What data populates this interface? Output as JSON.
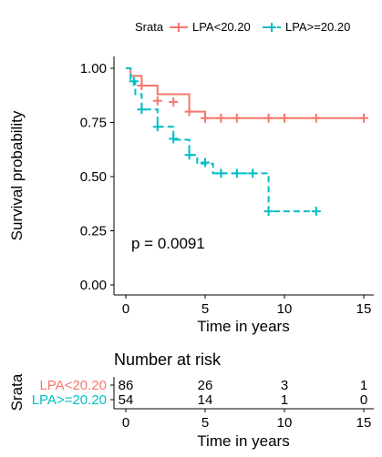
{
  "chart_data": [
    {
      "type": "line",
      "subtype": "kaplan-meier",
      "title": "",
      "xlabel": "Time in years",
      "ylabel": "Survival probability",
      "xlim": [
        0,
        15
      ],
      "ylim": [
        0,
        1
      ],
      "x_ticks": [
        0,
        5,
        10,
        15
      ],
      "y_ticks": [
        0,
        0.25,
        0.5,
        0.75,
        1.0
      ],
      "y_tick_labels": [
        "0.00",
        "0.25",
        "0.50",
        "0.75",
        "1.00"
      ],
      "grid": false,
      "legend": {
        "title": "Srata",
        "placement": "top",
        "entries": [
          "LPA<20.20",
          "LPA>=20.20"
        ]
      },
      "annotation": "p = 0.0091",
      "series": [
        {
          "name": "LPA<20.20",
          "color": "#F8766D",
          "line_style": "solid",
          "steps": [
            [
              0,
              1.0
            ],
            [
              0.3,
              0.965
            ],
            [
              1.0,
              0.92
            ],
            [
              2.0,
              0.88
            ],
            [
              4.0,
              0.8
            ],
            [
              5.0,
              0.77
            ],
            [
              15.0,
              0.77
            ]
          ],
          "censor": [
            [
              1.0,
              0.92
            ],
            [
              2.0,
              0.85
            ],
            [
              3.0,
              0.845
            ],
            [
              4.0,
              0.8
            ],
            [
              5.0,
              0.77
            ],
            [
              6.0,
              0.77
            ],
            [
              7.0,
              0.77
            ],
            [
              9.0,
              0.77
            ],
            [
              10.0,
              0.77
            ],
            [
              12.0,
              0.77
            ],
            [
              15.0,
              0.77
            ]
          ]
        },
        {
          "name": "LPA>=20.20",
          "color": "#00BFC4",
          "line_style": "dashed",
          "steps": [
            [
              0,
              1.0
            ],
            [
              0.3,
              0.94
            ],
            [
              0.6,
              0.88
            ],
            [
              1.0,
              0.81
            ],
            [
              2.0,
              0.73
            ],
            [
              3.0,
              0.67
            ],
            [
              4.0,
              0.6
            ],
            [
              4.5,
              0.56
            ],
            [
              5.5,
              0.515
            ],
            [
              9.0,
              0.34
            ],
            [
              12.0,
              0.34
            ]
          ],
          "censor": [
            [
              0.5,
              0.94
            ],
            [
              1.0,
              0.81
            ],
            [
              2.0,
              0.73
            ],
            [
              3.0,
              0.675
            ],
            [
              4.0,
              0.6
            ],
            [
              5.0,
              0.565
            ],
            [
              6.0,
              0.515
            ],
            [
              7.0,
              0.515
            ],
            [
              8.0,
              0.515
            ],
            [
              9.0,
              0.34
            ],
            [
              12.0,
              0.34
            ]
          ]
        }
      ]
    },
    {
      "type": "table",
      "title": "Number at risk",
      "xlabel": "Time in years",
      "ylabel": "Srata",
      "x_ticks": [
        0,
        5,
        10,
        15
      ],
      "rows": [
        {
          "name": "LPA<20.20",
          "color": "#F8766D",
          "values": [
            "86",
            "26",
            "3",
            "1"
          ]
        },
        {
          "name": "LPA>=20.20",
          "color": "#00BFC4",
          "values": [
            "54",
            "14",
            "1",
            "0"
          ]
        }
      ]
    }
  ]
}
